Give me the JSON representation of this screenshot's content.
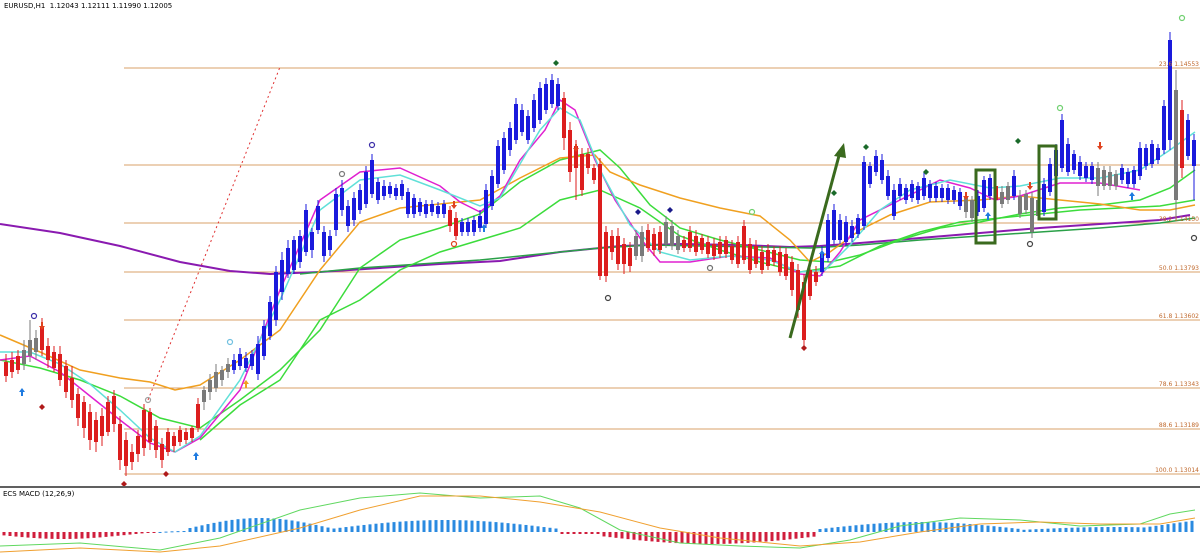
{
  "header": {
    "symbol_timeframe": "EURUSD,H1",
    "ohlc": "1.12043 1.12111 1.11990 1.12005"
  },
  "subwindow": {
    "title": "ECS MACD (12,26,9)"
  },
  "fibonacci": {
    "color": "#d9a06a",
    "label_color": "#c0692d",
    "levels": [
      {
        "key": "23.6",
        "label": "23.6 1.14553"
      },
      {
        "key": "38.2",
        "label": "38.2 1.14150"
      },
      {
        "key": "50.0",
        "label": "50.0 1.13793"
      },
      {
        "key": "61.8",
        "label": "61.8 1.13602"
      },
      {
        "key": "78.6",
        "label": "78.6 1.13343"
      },
      {
        "key": "88.6",
        "label": "88.6 1.13189"
      },
      {
        "key": "100.0",
        "label": "100.0 1.13014"
      }
    ]
  },
  "colors": {
    "bull_candle": "#1a1adc",
    "bear_candle": "#dc1e1e",
    "neutral_candle": "#7a7a7a",
    "ma_magenta": "#e020d0",
    "ma_cyan": "#60e0d8",
    "ma_orange": "#f0a020",
    "ma_green_light": "#3cdc3c",
    "ma_green_dark": "#2aa048",
    "ma_purple": "#8a1ab0",
    "annotation_green": "#3a6a1e",
    "macd_pos": "#2a8ae0",
    "macd_neg": "#d01e3c"
  },
  "annotations": [
    {
      "type": "arrow",
      "name": "green-trend-arrow"
    },
    {
      "type": "box",
      "name": "highlight-box-1"
    },
    {
      "type": "box",
      "name": "highlight-box-2"
    },
    {
      "type": "dotted-line",
      "name": "fib-anchor-line"
    }
  ]
}
